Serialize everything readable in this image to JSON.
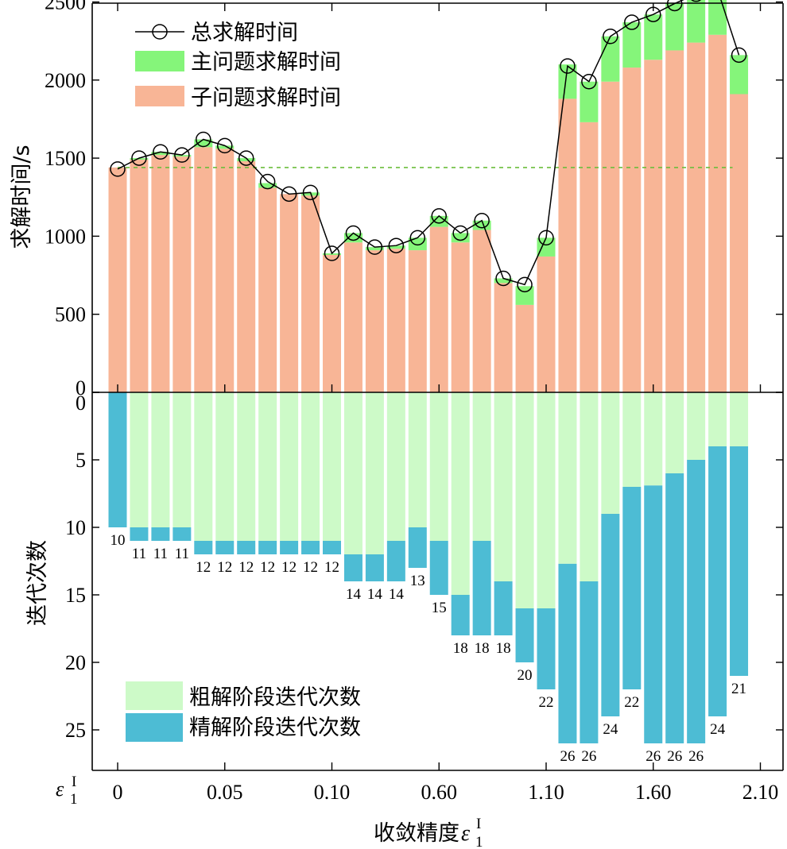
{
  "chart_data": [
    {
      "type": "bar",
      "panel": "top",
      "ylabel": "求解时间/s",
      "ylim": [
        0,
        2750
      ],
      "yticks": [
        0,
        500,
        1000,
        1500,
        2000,
        2500
      ],
      "stacked": true,
      "reference_line": 1440,
      "series": [
        {
          "name": "子问题求解时间",
          "color": "#f8b596",
          "values": [
            1440,
            1490,
            1520,
            1510,
            1570,
            1560,
            1480,
            1310,
            1270,
            1260,
            880,
            960,
            910,
            920,
            910,
            1060,
            960,
            1040,
            700,
            560,
            870,
            1880,
            1730,
            1990,
            2080,
            2130,
            2190,
            2240,
            2290,
            1910
          ]
        },
        {
          "name": "主问题求解时间",
          "color": "#85f57a",
          "values": [
            0,
            10,
            20,
            10,
            50,
            20,
            20,
            30,
            0,
            20,
            10,
            60,
            20,
            20,
            80,
            70,
            60,
            60,
            30,
            120,
            120,
            220,
            260,
            290,
            290,
            290,
            300,
            310,
            290,
            250
          ]
        },
        {
          "name": "总求解时间",
          "type": "line",
          "values": [
            1430,
            1500,
            1540,
            1520,
            1620,
            1580,
            1500,
            1350,
            1270,
            1280,
            890,
            1020,
            930,
            940,
            990,
            1130,
            1020,
            1100,
            730,
            690,
            990,
            2090,
            1990,
            2280,
            2370,
            2420,
            2490,
            2550,
            2580,
            2160
          ]
        }
      ]
    },
    {
      "type": "bar",
      "panel": "bottom",
      "ylabel": "迭代次数",
      "ylim": [
        0,
        28
      ],
      "yticks": [
        0,
        5,
        10,
        15,
        20,
        25
      ],
      "inverted": true,
      "series": [
        {
          "name": "粗解阶段迭代次数",
          "color": "#cdfac8",
          "values": [
            0,
            10,
            10,
            10,
            11,
            11,
            11,
            11,
            11,
            11,
            11,
            12,
            12,
            11,
            10,
            11,
            15,
            11,
            14,
            16,
            16,
            12.7,
            14,
            9,
            7,
            6.9,
            6,
            5,
            4,
            4
          ]
        },
        {
          "name": "精解阶段迭代次数",
          "color": "#4dbcd4",
          "values": [
            10,
            1,
            1,
            1,
            1,
            1,
            1,
            1,
            1,
            1,
            1,
            2,
            2,
            3,
            3,
            4,
            3,
            7,
            4,
            4,
            6,
            13.3,
            12,
            15,
            15,
            19.1,
            20,
            21,
            20,
            17
          ]
        }
      ],
      "totals": [
        10,
        11,
        11,
        11,
        12,
        12,
        12,
        12,
        12,
        12,
        12,
        14,
        14,
        14,
        13,
        15,
        18,
        18,
        18,
        20,
        22,
        26,
        26,
        24,
        22,
        26,
        26,
        26,
        24,
        21
      ]
    }
  ],
  "x_axis": {
    "title_prefix": "收敛精度",
    "symbol": "ε",
    "symbol_sub": "1",
    "symbol_sup": "I",
    "ticks": [
      {
        "index": 0,
        "label": "0"
      },
      {
        "index": 5,
        "label": "0.05"
      },
      {
        "index": 10,
        "label": "0.10"
      },
      {
        "index": 15,
        "label": "0.60"
      },
      {
        "index": 20,
        "label": "1.10"
      },
      {
        "index": 25,
        "label": "1.60"
      },
      {
        "index": 30,
        "label": "2.10"
      }
    ]
  },
  "colors": {
    "subproblem": "#f8b596",
    "master": "#85f57a",
    "coarse": "#cdfac8",
    "fine": "#4dbcd4",
    "reference_line": "#6cbd3c",
    "line": "#000000"
  }
}
